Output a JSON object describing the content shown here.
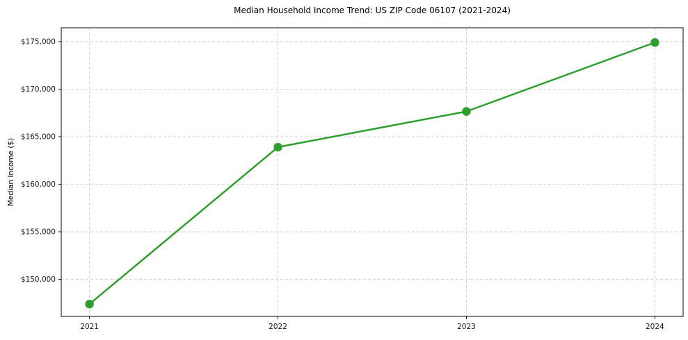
{
  "figure": {
    "background": "#ffffff"
  },
  "chart_data": {
    "type": "line",
    "title": "Median Household Income Trend: US ZIP Code 06107 (2021-2024)",
    "xlabel": "",
    "ylabel": "Median Income ($)",
    "x": [
      2021,
      2022,
      2023,
      2024
    ],
    "series": [
      {
        "name": "Median Household Income",
        "values": [
          147400,
          163900,
          167650,
          174900
        ],
        "color": "#2ca02c",
        "marker": "circle"
      }
    ],
    "xlim": [
      2020.85,
      2024.15
    ],
    "ylim": [
      146100,
      176450
    ],
    "xticks": [
      2021,
      2022,
      2023,
      2024
    ],
    "xtick_labels": [
      "2021",
      "2022",
      "2023",
      "2024"
    ],
    "yticks": [
      150000,
      155000,
      160000,
      165000,
      170000,
      175000
    ],
    "ytick_labels": [
      "$150,000",
      "$155,000",
      "$160,000",
      "$165,000",
      "$170,000",
      "$175,000"
    ],
    "grid": true,
    "grid_style": "dashed",
    "grid_color": "#cccccc",
    "spine_color": "#000000",
    "tick_color": "#000000",
    "legend": "none"
  }
}
